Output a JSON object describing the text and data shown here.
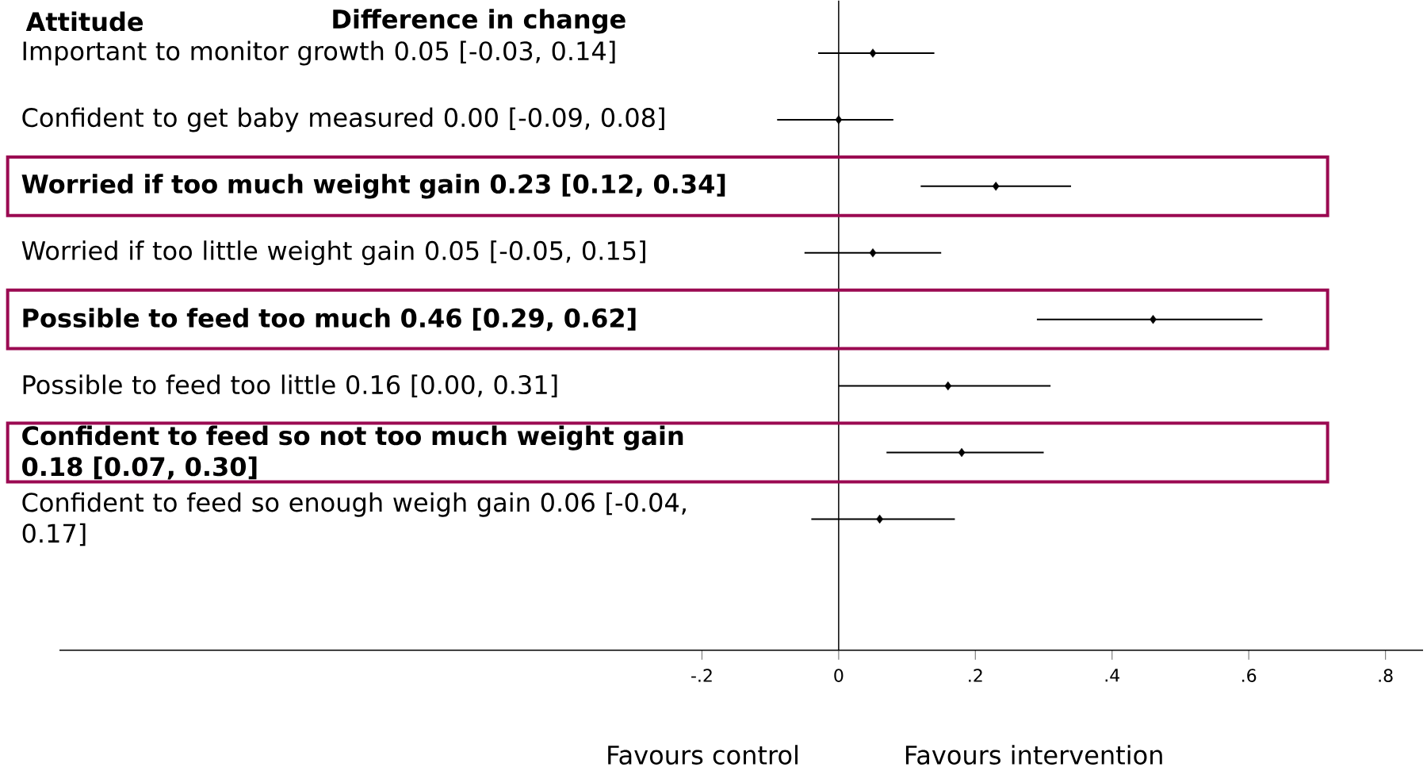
{
  "chart_data": {
    "type": "scatter",
    "orientation": "horizontal",
    "ylabel": "Attitude",
    "annotations": [
      "Difference in change",
      "Favours control",
      "Favours intervention"
    ],
    "categories": [
      "Important to monitor growth 0.05 [-0.03, 0.14]",
      "Confident to get baby measured 0.00 [-0.09, 0.08]",
      "**Worried if too much weight gain 0.23 [0.12, 0.34]**",
      "Worried if too little weight gain 0.05 [-0.05, 0.15]",
      "**Possible to feed too much 0.46  [0.29, 0.62]**",
      "Possible to feed too little 0.16 [0.00, 0.31]",
      "**Confident to feed so not too much weight gain 0.18 [0.07, 0.30]**",
      "Confident to feed so enough weigh gain 0.06 [-0.04, 0.17]"
    ],
    "values": [
      0.05,
      0.0,
      0.23,
      0.05,
      0.46,
      0.16,
      0.18,
      0.06
    ],
    "errors": [
      [
        -0.03,
        0.14
      ],
      [
        -0.09,
        0.08
      ],
      [
        0.12,
        0.34
      ],
      [
        -0.05,
        0.15
      ],
      [
        0.29,
        0.62
      ],
      [
        0.0,
        0.31
      ],
      [
        0.07,
        0.3
      ],
      [
        -0.04,
        0.17
      ]
    ],
    "color": "#000000",
    "marker": "diamond",
    "xlim": [
      -1.14,
      0.855
    ],
    "xticks": [
      {
        "value": -0.2,
        "label": "-.2"
      },
      0,
      {
        "value": 0.2,
        "label": ".2"
      },
      {
        "value": 0.4,
        "label": ".4"
      },
      {
        "value": 0.6,
        "label": ".6"
      },
      {
        "value": 0.8,
        "label": ".8"
      }
    ],
    "ref_lines": [
      {
        "axis": "x",
        "value": 0
      }
    ]
  }
}
